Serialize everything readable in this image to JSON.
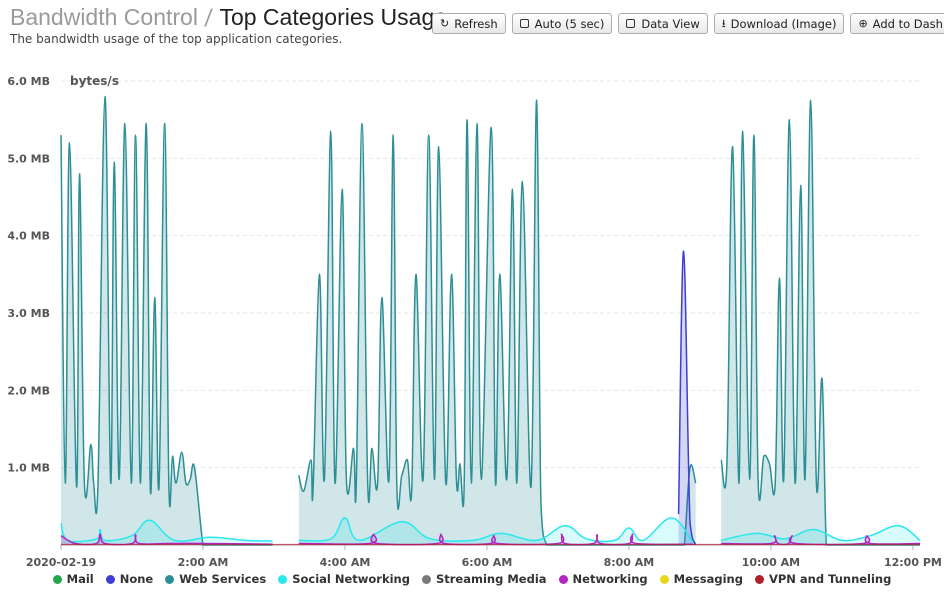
{
  "header": {
    "breadcrumb": "Bandwidth Control",
    "separator": "/",
    "title": "Top Categories Usage",
    "subtitle": "The bandwidth usage of the top application categories."
  },
  "toolbar": {
    "refresh": {
      "label": "Refresh",
      "icon": "refresh-icon"
    },
    "auto": {
      "label": "Auto (5 sec)",
      "checked": false
    },
    "data_view": {
      "label": "Data View",
      "checked": false
    },
    "download": {
      "label": "Download (Image)",
      "icon": "download-icon"
    },
    "add": {
      "label": "Add to Dash",
      "icon": "plus-circle-icon"
    }
  },
  "chart_data": {
    "type": "area",
    "ylabel": "bytes/s",
    "ylim": [
      0,
      6
    ],
    "yunit": "MB",
    "y_ticks": [
      "6.0 MB",
      "5.0 MB",
      "4.0 MB",
      "3.0 MB",
      "2.0 MB",
      "1.0 MB"
    ],
    "x_ticks": [
      "2020-02-19",
      "2:00 AM",
      "4:00 AM",
      "6:00 AM",
      "8:00 AM",
      "10:00 AM",
      "12:00 PM"
    ],
    "x_tick_hours": [
      0,
      2,
      4,
      6,
      8,
      10,
      12
    ],
    "xlim_hours": [
      0,
      12.1
    ],
    "gaps_hours": [
      [
        2.98,
        3.35
      ],
      [
        8.94,
        9.3
      ]
    ],
    "legend": [
      {
        "name": "Mail",
        "color": "#22a84a"
      },
      {
        "name": "None",
        "color": "#3f3fd1"
      },
      {
        "name": "Web Services",
        "color": "#2b8f95"
      },
      {
        "name": "Social Networking",
        "color": "#28e8ee"
      },
      {
        "name": "Streaming Media",
        "color": "#7a7a7a"
      },
      {
        "name": "Networking",
        "color": "#b424c2"
      },
      {
        "name": "Messaging",
        "color": "#e8d81c"
      },
      {
        "name": "VPN and Tunneling",
        "color": "#b01f2a"
      }
    ],
    "series": [
      {
        "name": "Web Services",
        "color": "#2b8f95",
        "x_hours": [
          0.0,
          0.06,
          0.12,
          0.22,
          0.26,
          0.33,
          0.42,
          0.46,
          0.52,
          0.62,
          0.7,
          0.75,
          0.82,
          0.9,
          0.99,
          1.05,
          1.12,
          1.2,
          1.26,
          1.32,
          1.38,
          1.46,
          1.52,
          1.57,
          1.62,
          1.7,
          1.76,
          1.82,
          1.88,
          2.0,
          2.06,
          2.12,
          2.2,
          2.25,
          2.3,
          2.36,
          2.46,
          2.52,
          2.58,
          2.64,
          2.71,
          2.77,
          2.84,
          2.93,
          2.98,
          3.35,
          3.42,
          3.52,
          3.55,
          3.64,
          3.71,
          3.8,
          3.86,
          3.96,
          4.02,
          4.12,
          4.16,
          4.24,
          4.32,
          4.38,
          4.46,
          4.52,
          4.62,
          4.68,
          4.73,
          4.8,
          4.88,
          4.94,
          5.0,
          5.1,
          5.18,
          5.26,
          5.32,
          5.42,
          5.5,
          5.57,
          5.62,
          5.68,
          5.72,
          5.78,
          5.86,
          5.92,
          6.06,
          6.12,
          6.18,
          6.28,
          6.36,
          6.42,
          6.5,
          6.62,
          6.7,
          6.76,
          6.84,
          6.92,
          7.0,
          7.06,
          7.14,
          7.22,
          7.3,
          7.36,
          7.45,
          7.52,
          7.58,
          7.68,
          7.76,
          7.84,
          7.92,
          8.0,
          8.08,
          8.14,
          8.22,
          8.3,
          8.38,
          8.46,
          8.52,
          8.58,
          8.64,
          8.72,
          8.78,
          8.86,
          8.94,
          9.3,
          9.38,
          9.46,
          9.55,
          9.6,
          9.7,
          9.76,
          9.82,
          9.9,
          9.98,
          10.06,
          10.12,
          10.18,
          10.26,
          10.34,
          10.42,
          10.48,
          10.56,
          10.64,
          10.72,
          10.78,
          10.85,
          10.92,
          11.0,
          11.08,
          11.16,
          11.24,
          11.3,
          11.38,
          11.46,
          11.54,
          11.62,
          11.7,
          11.78,
          11.86,
          11.94,
          12.02,
          12.1
        ],
        "values": [
          5.3,
          0.8,
          5.2,
          0.75,
          4.8,
          0.8,
          1.3,
          0.8,
          0.75,
          5.8,
          0.8,
          4.95,
          0.85,
          5.45,
          0.8,
          5.3,
          0.8,
          5.45,
          0.7,
          3.2,
          0.75,
          5.45,
          0.75,
          1.15,
          0.8,
          1.2,
          0.8,
          0.85,
          1.0,
          0.0,
          0.0,
          0.0,
          0.0,
          0.0,
          0.0,
          0.0,
          0.0,
          0.0,
          0.0,
          0.0,
          0.0,
          0.0,
          0.0,
          0.0,
          0.0,
          0.9,
          0.7,
          1.1,
          0.7,
          3.5,
          0.85,
          5.35,
          0.8,
          4.6,
          0.85,
          1.25,
          0.8,
          5.45,
          0.8,
          1.25,
          0.8,
          3.2,
          0.85,
          5.3,
          0.8,
          0.9,
          1.1,
          0.7,
          3.5,
          0.85,
          5.3,
          0.85,
          5.15,
          0.8,
          3.5,
          0.85,
          1.05,
          0.8,
          5.5,
          0.8,
          5.45,
          0.85,
          5.4,
          0.8,
          3.5,
          0.85,
          4.6,
          0.8,
          4.7,
          0.75,
          5.75,
          0.55,
          0.0,
          0.0,
          0.0,
          0.0,
          0.0,
          0.0,
          0.0,
          0.0,
          0.0,
          0.0,
          0.0,
          0.0,
          0.0,
          0.0,
          0.0,
          0.0,
          0.0,
          0.0,
          0.0,
          0.0,
          0.0,
          0.0,
          0.0,
          0.0,
          0.0,
          0.0,
          0.0,
          1.0,
          0.8,
          1.1,
          1.05,
          5.15,
          0.8,
          5.35,
          0.85,
          5.3,
          0.85,
          1.15,
          1.05,
          0.8,
          3.45,
          0.85,
          5.5,
          0.8,
          4.65,
          0.85,
          5.75,
          0.8,
          2.15,
          0.0,
          0.0,
          0.0,
          0.0,
          0.0,
          0.0,
          0.0,
          0.0,
          0.0,
          0.0,
          0.0,
          0.0,
          0.0,
          0.0,
          0.0,
          0.0,
          0.0,
          0.0
        ]
      },
      {
        "name": "Social Networking",
        "color": "#28e8ee",
        "x_hours": [
          0.0,
          0.1,
          0.5,
          0.55,
          0.62,
          1.0,
          1.25,
          1.6,
          2.1,
          2.6,
          2.98,
          3.35,
          3.8,
          4.0,
          4.2,
          4.8,
          5.2,
          5.8,
          6.2,
          6.7,
          7.1,
          7.4,
          7.8,
          8.0,
          8.2,
          8.6,
          8.9,
          9.3,
          9.8,
          10.2,
          10.6,
          11.0,
          11.4,
          11.8,
          12.1
        ],
        "values": [
          0.28,
          0.06,
          0.08,
          0.2,
          0.06,
          0.12,
          0.32,
          0.06,
          0.1,
          0.06,
          0.05,
          0.06,
          0.08,
          0.35,
          0.06,
          0.3,
          0.08,
          0.06,
          0.15,
          0.06,
          0.25,
          0.08,
          0.06,
          0.22,
          0.06,
          0.35,
          0.04,
          0.06,
          0.15,
          0.08,
          0.2,
          0.06,
          0.12,
          0.25,
          0.06
        ]
      },
      {
        "name": "Networking",
        "color": "#b424c2",
        "x_hours": [
          0.0,
          0.2,
          0.5,
          0.55,
          0.62,
          1.0,
          1.05,
          1.1,
          1.5,
          2.0,
          2.98,
          3.35,
          4.35,
          4.4,
          4.45,
          5.3,
          5.35,
          5.4,
          6.05,
          6.1,
          6.15,
          7.0,
          7.05,
          7.1,
          7.5,
          7.55,
          7.6,
          8.0,
          8.05,
          8.1,
          8.9,
          9.3,
          10.0,
          10.05,
          10.1,
          10.25,
          10.3,
          10.35,
          11.3,
          11.35,
          11.4,
          12.1
        ],
        "values": [
          0.12,
          0.02,
          0.02,
          0.14,
          0.02,
          0.02,
          0.13,
          0.02,
          0.02,
          0.02,
          0.01,
          0.02,
          0.02,
          0.14,
          0.02,
          0.02,
          0.14,
          0.02,
          0.02,
          0.12,
          0.02,
          0.02,
          0.14,
          0.02,
          0.02,
          0.13,
          0.02,
          0.02,
          0.14,
          0.02,
          0.01,
          0.02,
          0.02,
          0.12,
          0.02,
          0.02,
          0.12,
          0.02,
          0.02,
          0.12,
          0.02,
          0.02
        ]
      },
      {
        "name": "None",
        "color": "#3f3fd1",
        "x_hours": [
          8.7,
          8.77,
          8.86,
          8.94
        ],
        "values": [
          0.4,
          3.8,
          0.3,
          0.0
        ]
      }
    ]
  }
}
